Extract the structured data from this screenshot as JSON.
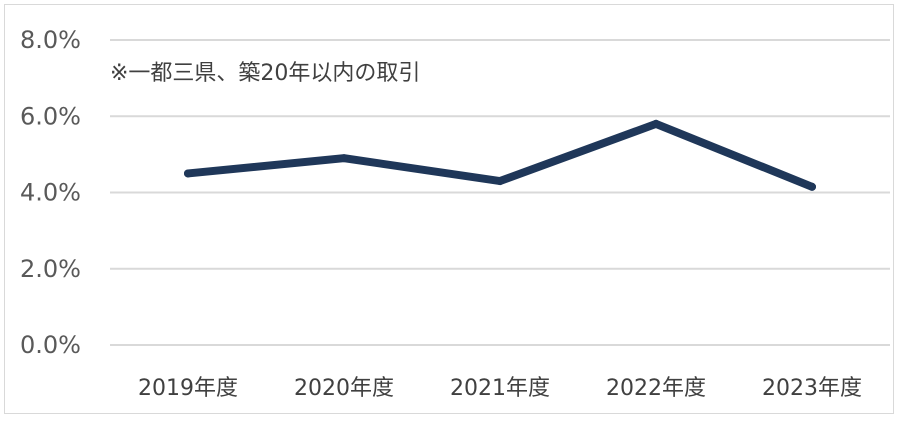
{
  "chart_data": {
    "type": "line",
    "annotation": "※一都三県、築20年以内の取引",
    "categories": [
      "2019年度",
      "2020年度",
      "2021年度",
      "2022年度",
      "2023年度"
    ],
    "series": [
      {
        "values": [
          4.5,
          4.9,
          4.3,
          5.8,
          4.15
        ],
        "color": "#1f3759"
      }
    ],
    "ylim": [
      0,
      8
    ],
    "y_ticks": [
      0,
      2,
      4,
      6,
      8
    ],
    "y_tick_labels": [
      "0.0%",
      "2.0%",
      "4.0%",
      "6.0%",
      "8.0%"
    ],
    "grid": true,
    "gridline_color": "#d9d9d9"
  }
}
